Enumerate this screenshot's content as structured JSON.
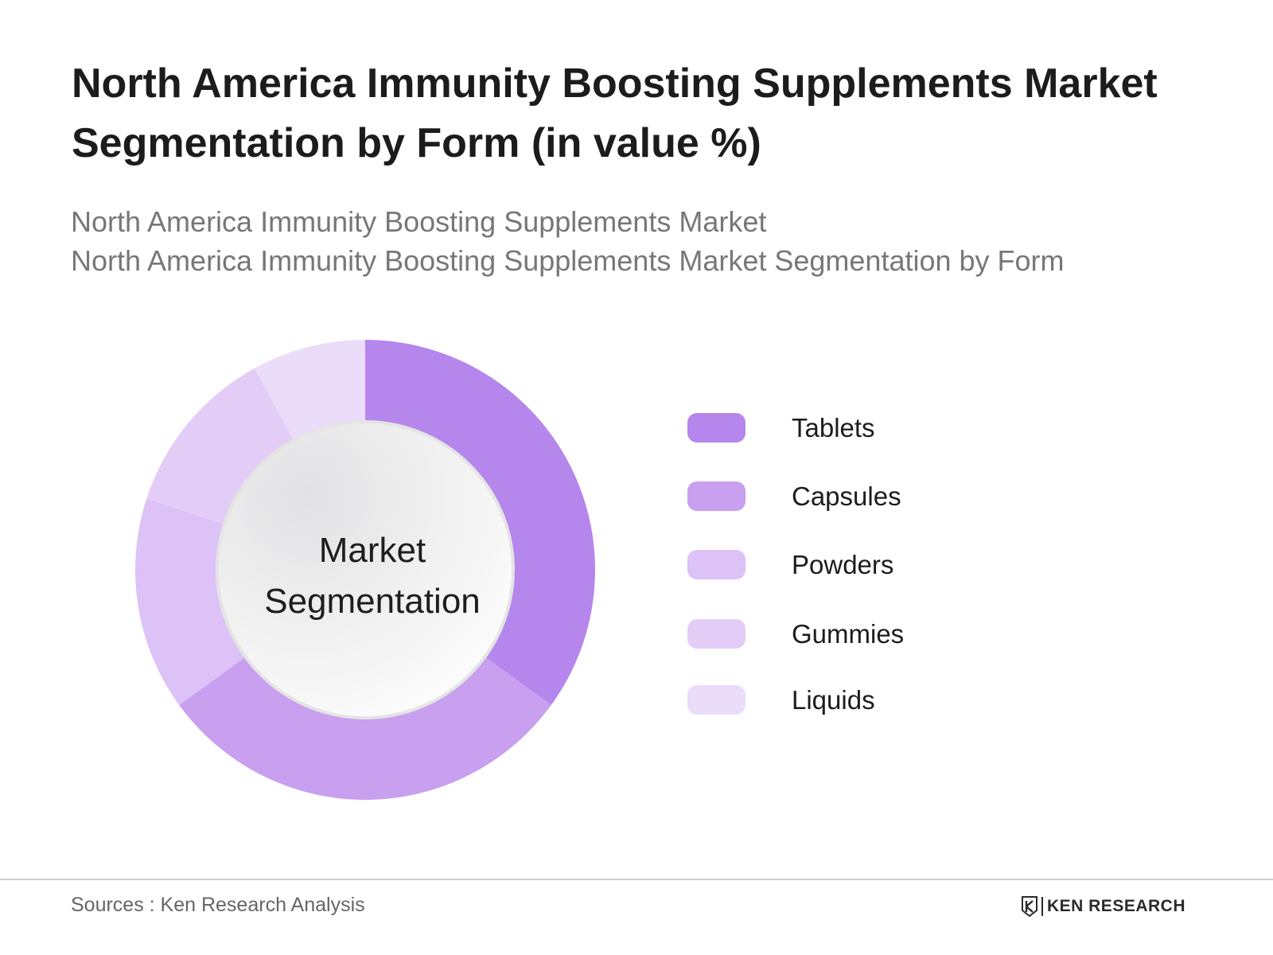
{
  "header": {
    "title": "North America Immunity Boosting Supplements Market Segmentation by Form (in value %)",
    "subtitle_line1": "North America Immunity Boosting Supplements Market",
    "subtitle_line2": "North America Immunity Boosting Supplements Market Segmentation by Form"
  },
  "chart_data": {
    "type": "pie",
    "variant": "donut",
    "center_label_line1": "Market",
    "center_label_line2": "Segmentation",
    "categories": [
      "Tablets",
      "Capsules",
      "Powders",
      "Gummies",
      "Liquids"
    ],
    "values": [
      35,
      30,
      15,
      12,
      8
    ],
    "colors": [
      "#b586ec",
      "#c99ff0",
      "#dcc2f6",
      "#e3cdf7",
      "#ebdcfa"
    ],
    "legend_position": "right"
  },
  "footer": {
    "source": "Sources : Ken Research Analysis",
    "brand": "KEN RESEARCH"
  }
}
